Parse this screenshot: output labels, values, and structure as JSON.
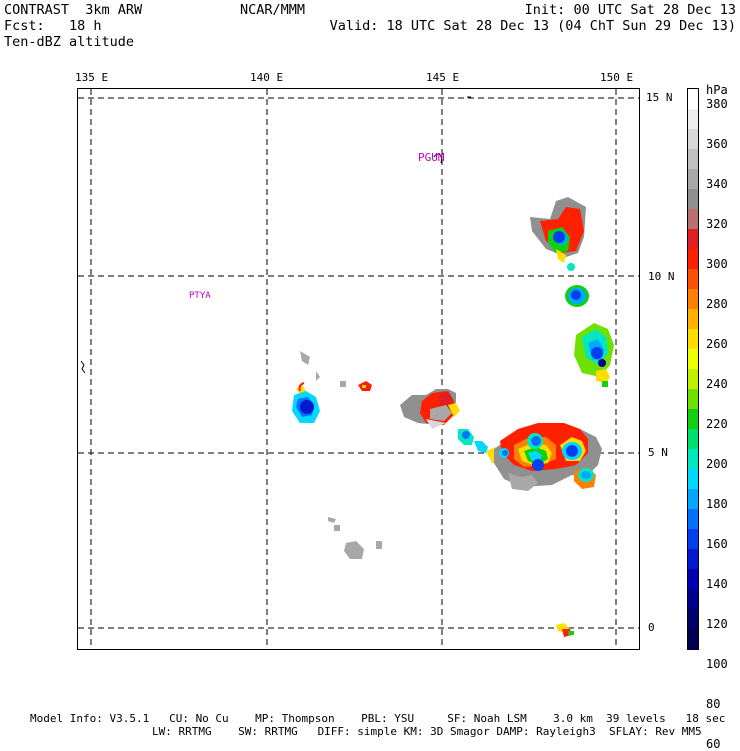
{
  "header": {
    "left_line1": "CONTRAST  3km ARW",
    "left_line2": "Fcst:   18 h",
    "left_line3": "Ten-dBZ altitude",
    "center_line1": "NCAR/MMM",
    "right_line1": "Init: 00 UTC Sat 28 Dec 13",
    "right_line2": "Valid: 18 UTC Sat 28 Dec 13 (04 ChT Sun 29 Dec 13)"
  },
  "map": {
    "lon_labels": [
      "135 E",
      "140 E",
      "145 E",
      "150 E"
    ],
    "lat_labels": [
      "15 N",
      "10 N",
      "5 N",
      "0"
    ],
    "place_labels": [
      "PGUM",
      "PTYA"
    ]
  },
  "colorbar": {
    "unit": "hPa",
    "tick_labels": [
      "380",
      "360",
      "340",
      "320",
      "300",
      "280",
      "260",
      "240",
      "220",
      "200",
      "180",
      "160",
      "140",
      "120",
      "100",
      "80",
      "60"
    ],
    "colors": [
      "#ffffff",
      "#eeeeee",
      "#d8d8d8",
      "#c0c0c0",
      "#a8a8a8",
      "#909090",
      "#b87070",
      "#e02020",
      "#ff2000",
      "#ff5000",
      "#ff8000",
      "#ffb000",
      "#ffdd00",
      "#f0ff00",
      "#c0f000",
      "#70e000",
      "#10d010",
      "#00e070",
      "#00e8c0",
      "#00d8ff",
      "#00a8ff",
      "#0070ff",
      "#0040f0",
      "#0018d0",
      "#0000b0",
      "#000090",
      "#00006a",
      "#000050"
    ]
  },
  "footer": {
    "line1": "Model Info: V3.5.1   CU: No Cu    MP: Thompson    PBL: YSU     SF: Noah LSM    3.0 km  39 levels   18 sec",
    "line2": "LW: RRTMG    SW: RRTMG   DIFF: simple KM: 3D Smagor DAMP: Rayleigh3  SFLAY: Rev MM5"
  }
}
